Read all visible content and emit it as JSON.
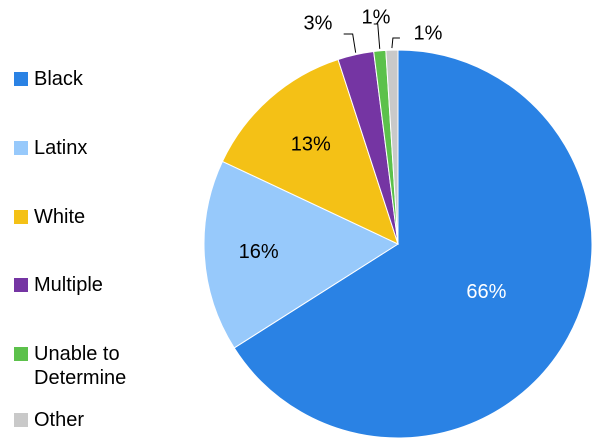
{
  "chart_data": {
    "type": "pie",
    "title": "",
    "slices": [
      {
        "label": "Black",
        "value": 66,
        "value_label": "66%",
        "color": "#2A82E4"
      },
      {
        "label": "Latinx",
        "value": 16,
        "value_label": "16%",
        "color": "#97C9FB"
      },
      {
        "label": "White",
        "value": 13,
        "value_label": "13%",
        "color": "#F4C116"
      },
      {
        "label": "Multiple",
        "value": 3,
        "value_label": "3%",
        "color": "#7535A3"
      },
      {
        "label": "Unable to\nDetermine",
        "value": 1,
        "value_label": "1%",
        "color": "#5CC14B"
      },
      {
        "label": "Other",
        "value": 1,
        "value_label": "1%",
        "color": "#C9C9C9"
      }
    ],
    "legend_position": "left",
    "start": "12 o'clock",
    "direction": "clockwise"
  }
}
